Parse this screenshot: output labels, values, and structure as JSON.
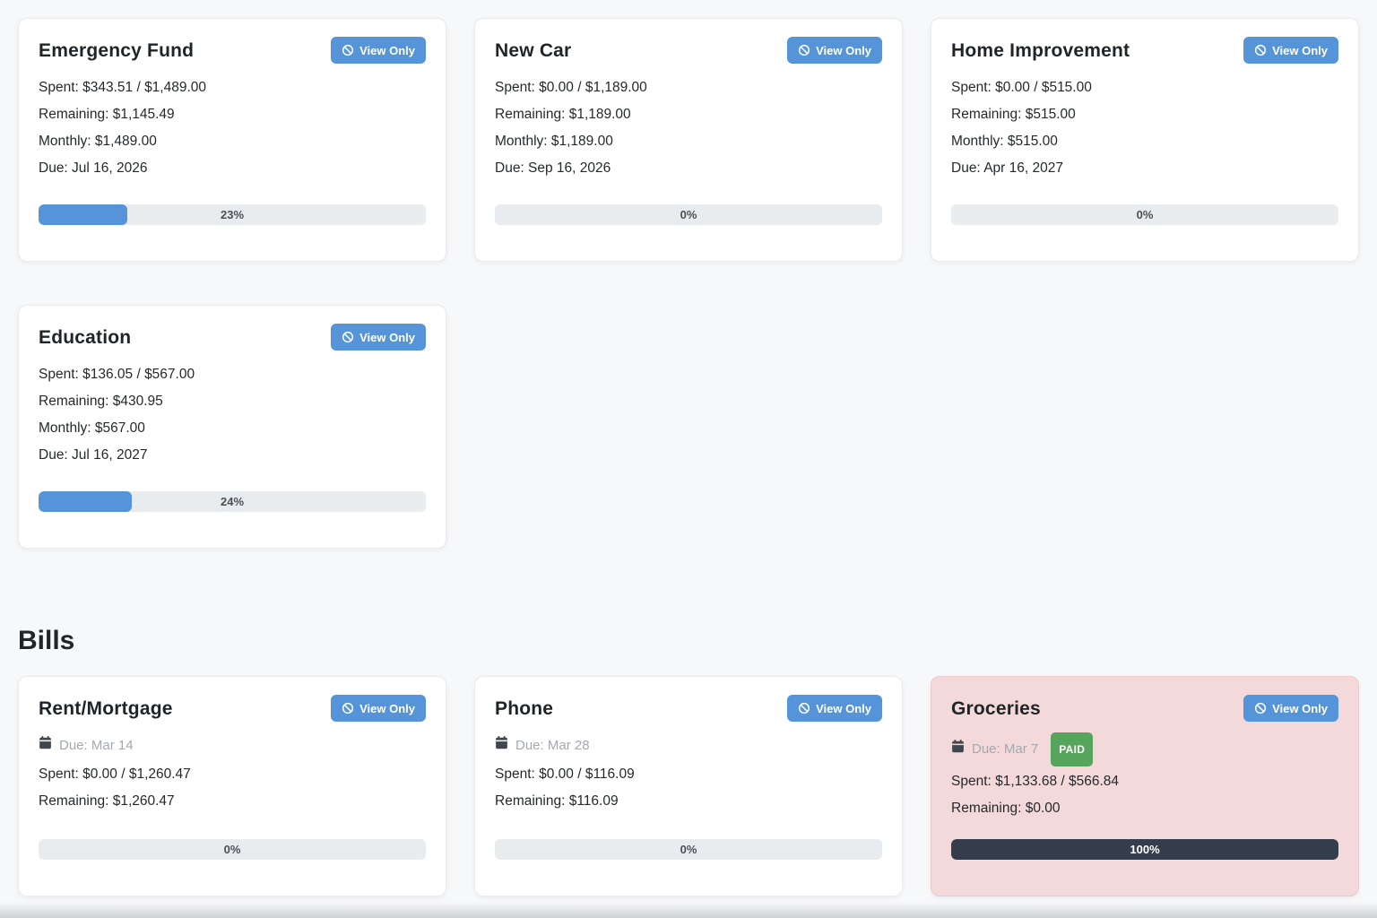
{
  "labels": {
    "view_only": "View Only",
    "bills_heading": "Bills",
    "paid": "PAID"
  },
  "colors": {
    "accent_blue": "#5594d9",
    "progress_track": "#e9ecef",
    "paid_green": "#55a65c",
    "overspent_card_pink": "#f3d9d9",
    "dark_progress": "#333d4c",
    "page_background": "#f7f8fa"
  },
  "budgets": [
    {
      "title": "Emergency Fund",
      "spent_line": "Spent: $343.51 / $1,489.00",
      "remaining_line": "Remaining: $1,145.49",
      "monthly_line": "Monthly: $1,489.00",
      "due_line": "Due: Jul 16, 2026",
      "percent": 23,
      "percent_label": "23%"
    },
    {
      "title": "New Car",
      "spent_line": "Spent: $0.00 / $1,189.00",
      "remaining_line": "Remaining: $1,189.00",
      "monthly_line": "Monthly: $1,189.00",
      "due_line": "Due: Sep 16, 2026",
      "percent": 0,
      "percent_label": "0%"
    },
    {
      "title": "Home Improvement",
      "spent_line": "Spent: $0.00 / $515.00",
      "remaining_line": "Remaining: $515.00",
      "monthly_line": "Monthly: $515.00",
      "due_line": "Due: Apr 16, 2027",
      "percent": 0,
      "percent_label": "0%"
    },
    {
      "title": "Education",
      "spent_line": "Spent: $136.05 / $567.00",
      "remaining_line": "Remaining: $430.95",
      "monthly_line": "Monthly: $567.00",
      "due_line": "Due: Jul 16, 2027",
      "percent": 24,
      "percent_label": "24%"
    }
  ],
  "bills": [
    {
      "title": "Rent/Mortgage",
      "due_text": "Due: Mar 14",
      "spent_line": "Spent: $0.00 / $1,260.47",
      "remaining_line": "Remaining: $1,260.47",
      "percent": 0,
      "percent_label": "0%"
    },
    {
      "title": "Phone",
      "due_text": "Due: Mar 28",
      "spent_line": "Spent: $0.00 / $116.09",
      "remaining_line": "Remaining: $116.09",
      "percent": 0,
      "percent_label": "0%"
    },
    {
      "title": "Groceries",
      "due_text": "Due: Mar 7",
      "spent_line": "Spent: $1,133.68 / $566.84",
      "remaining_line": "Remaining: $0.00",
      "percent": 100,
      "percent_label": "100%"
    }
  ]
}
